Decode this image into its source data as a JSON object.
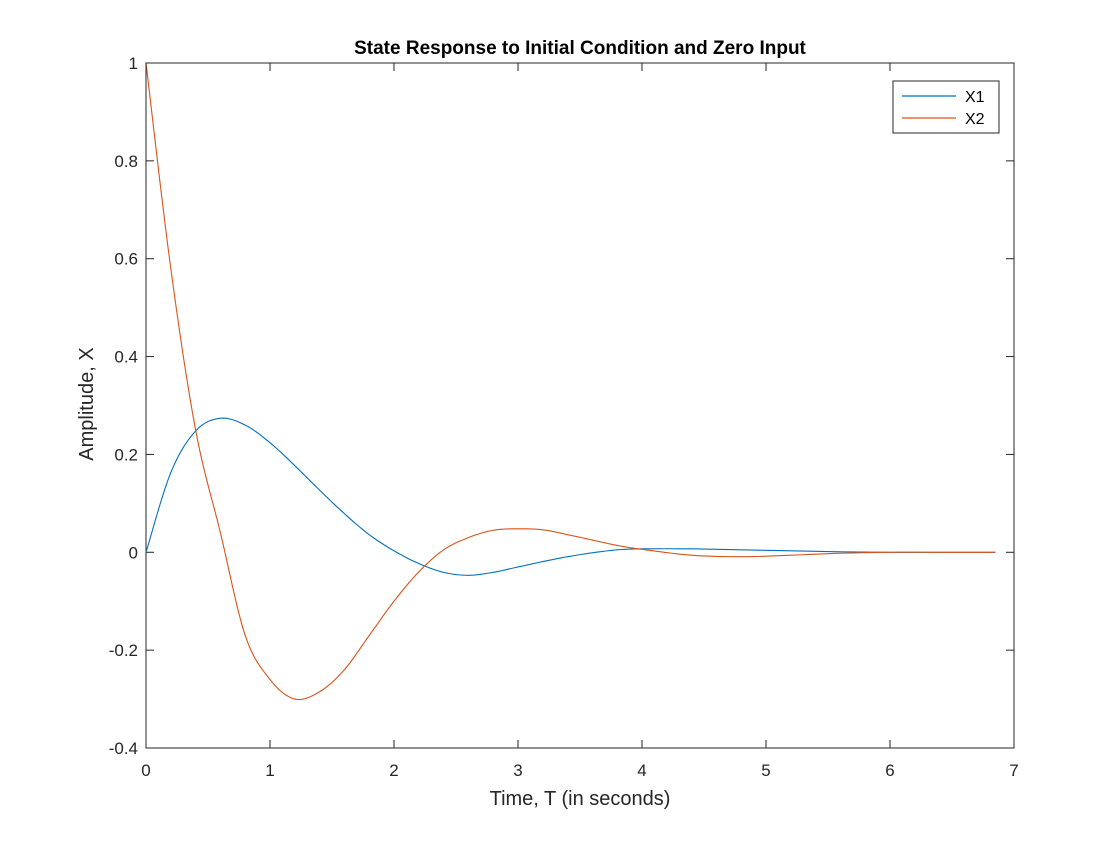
{
  "chart_data": {
    "type": "line",
    "title": "State Response to Initial Condition and Zero Input",
    "xlabel": "Time, T (in seconds)",
    "ylabel": "Amplitude, X",
    "xlim": [
      0,
      7
    ],
    "ylim": [
      -0.4,
      1
    ],
    "xticks": [
      0,
      1,
      2,
      3,
      4,
      5,
      6,
      7
    ],
    "xtick_labels": [
      "0",
      "1",
      "2",
      "3",
      "4",
      "5",
      "6",
      "7"
    ],
    "yticks": [
      -0.4,
      -0.2,
      0,
      0.2,
      0.4,
      0.6,
      0.8,
      1
    ],
    "ytick_labels": [
      "-0.4",
      "-0.2",
      "0",
      "0.2",
      "0.4",
      "0.6",
      "0.8",
      "1"
    ],
    "grid": false,
    "legend_position": "top-right",
    "series": [
      {
        "name": "X1",
        "color": "#0072BD",
        "x": [
          0,
          0.2,
          0.4,
          0.6,
          0.8,
          1.0,
          1.2,
          1.4,
          1.6,
          1.8,
          2.0,
          2.2,
          2.4,
          2.6,
          2.8,
          3.0,
          3.2,
          3.4,
          3.6,
          3.8,
          4.0,
          4.4,
          4.8,
          5.2,
          5.6,
          6.0,
          6.4,
          6.85
        ],
        "y": [
          0,
          0.163,
          0.248,
          0.274,
          0.26,
          0.224,
          0.177,
          0.127,
          0.079,
          0.036,
          0.003,
          -0.023,
          -0.041,
          -0.047,
          -0.041,
          -0.03,
          -0.019,
          -0.009,
          -0.001,
          0.005,
          0.007,
          0.007,
          0.005,
          0.003,
          0.001,
          0.0,
          0.0,
          0.0
        ]
      },
      {
        "name": "X2",
        "color": "#D95319",
        "x": [
          0,
          0.2,
          0.4,
          0.6,
          0.8,
          1.0,
          1.2,
          1.4,
          1.6,
          1.8,
          2.0,
          2.2,
          2.4,
          2.6,
          2.8,
          3.0,
          3.2,
          3.4,
          3.6,
          3.8,
          4.0,
          4.4,
          4.8,
          5.2,
          5.6,
          6.0,
          6.4,
          6.85
        ],
        "y": [
          1.0,
          0.58,
          0.25,
          0.04,
          -0.17,
          -0.26,
          -0.3,
          -0.285,
          -0.24,
          -0.17,
          -0.1,
          -0.04,
          0.005,
          0.03,
          0.045,
          0.048,
          0.046,
          0.036,
          0.025,
          0.014,
          0.006,
          -0.006,
          -0.009,
          -0.006,
          -0.002,
          0.0,
          0.0,
          0.0
        ]
      }
    ]
  }
}
